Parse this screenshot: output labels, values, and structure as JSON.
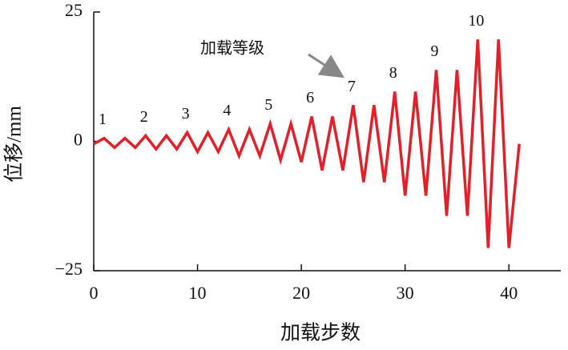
{
  "chart_data": {
    "type": "line",
    "x_label": "加载步数",
    "y_label": "位移/mm",
    "annotation": "加载等级",
    "level_labels": [
      "1",
      "2",
      "3",
      "4",
      "5",
      "6",
      "7",
      "8",
      "9",
      "10"
    ],
    "x": [
      0,
      1,
      2,
      3,
      4,
      5,
      6,
      7,
      8,
      9,
      10,
      11,
      12,
      13,
      14,
      15,
      16,
      17,
      18,
      19,
      20,
      21,
      22,
      23,
      24,
      25,
      26,
      27,
      28,
      29,
      30,
      31,
      32,
      33,
      34,
      35,
      36,
      37,
      38,
      39,
      40,
      41
    ],
    "series": [
      {
        "color": "#e3202a",
        "values": [
          -0.5,
          0.6,
          -1.2,
          0.6,
          -1.2,
          1.1,
          -1.5,
          1.1,
          -1.5,
          1.7,
          -2,
          1.7,
          -2,
          2.3,
          -2.8,
          2.3,
          -2.8,
          3.4,
          -3.6,
          3.4,
          -4,
          4.8,
          -5.6,
          4.8,
          -5.6,
          7,
          -7.9,
          7,
          -7.9,
          9.6,
          -10.5,
          9.6,
          -10.5,
          13.8,
          -14.4,
          13.8,
          -14.4,
          19.7,
          -20.6,
          19.7,
          -20.6,
          -0.5
        ]
      }
    ],
    "xlim": [
      0,
      45
    ],
    "ylim": [
      -25,
      25
    ],
    "xticks": [
      0,
      10,
      20,
      30,
      40
    ],
    "yticks": [
      {
        "value": -25,
        "label": "−25"
      },
      0,
      25
    ]
  }
}
